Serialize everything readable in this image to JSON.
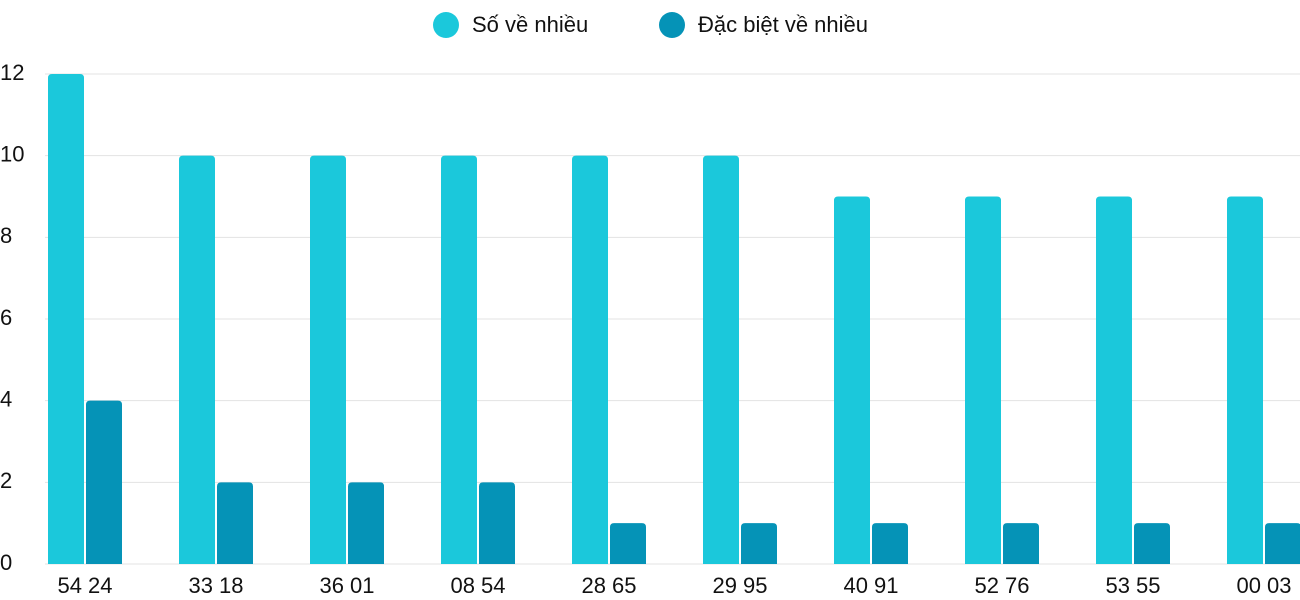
{
  "chart_data": {
    "type": "bar",
    "categories": [
      "54 24",
      "33 18",
      "36 01",
      "08 54",
      "28 65",
      "29 95",
      "40 91",
      "52 76",
      "53 55",
      "00 03"
    ],
    "series": [
      {
        "name": "Số về nhiều",
        "color": "#1bc8db",
        "values": [
          12,
          10,
          10,
          10,
          10,
          10,
          9,
          9,
          9,
          9
        ]
      },
      {
        "name": "Đặc biệt về nhiều",
        "color": "#0593b7",
        "values": [
          4,
          2,
          2,
          2,
          1,
          1,
          1,
          1,
          1,
          1
        ]
      }
    ],
    "ylim": [
      0,
      12
    ],
    "yticks": [
      0,
      2,
      4,
      6,
      8,
      10,
      12
    ],
    "grid": true,
    "legend": "top"
  }
}
